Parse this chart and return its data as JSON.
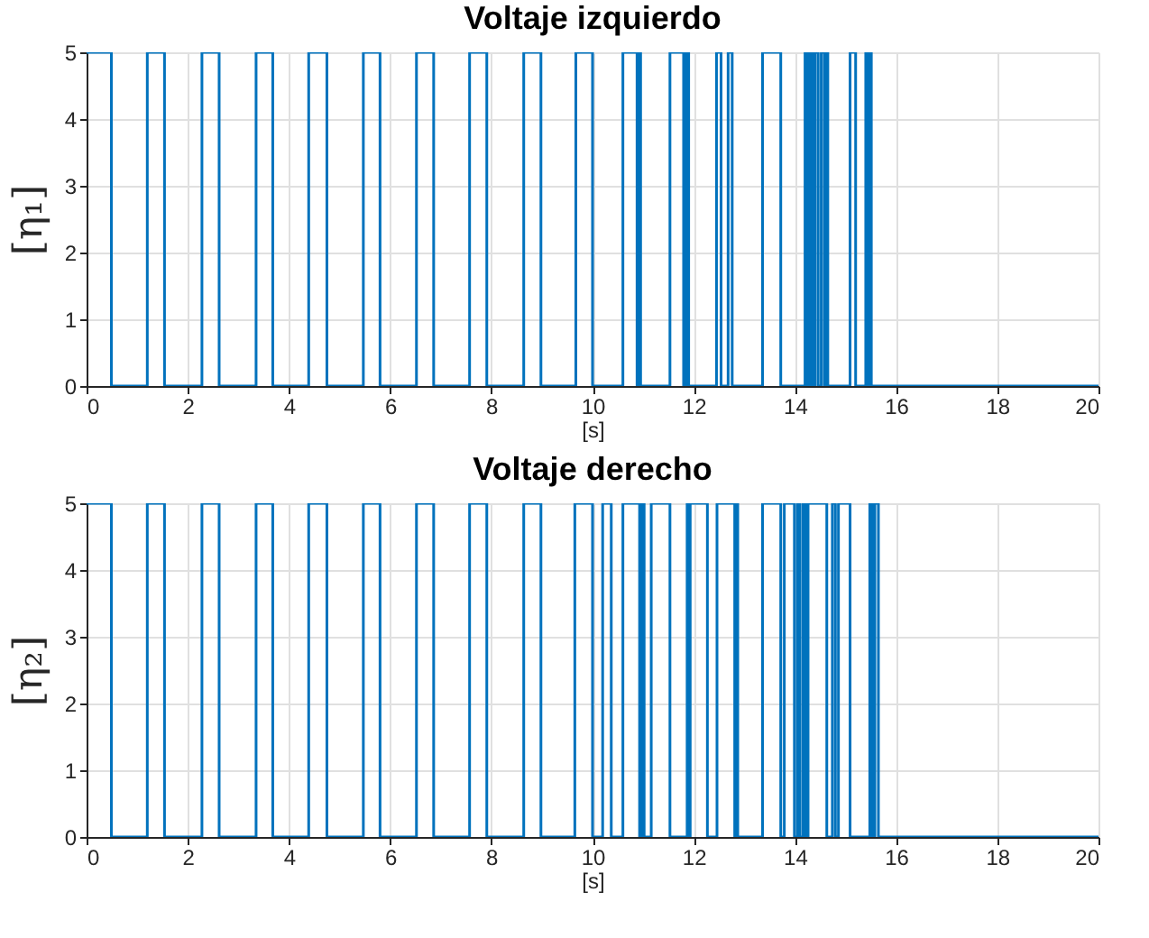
{
  "chart_data": [
    {
      "type": "step",
      "title": "Voltaje izquierdo",
      "xlabel": "[s]",
      "ylabel": "[η₁]",
      "xlim": [
        0,
        20
      ],
      "xticks": [
        0,
        2,
        4,
        6,
        8,
        10,
        12,
        14,
        16,
        18,
        20
      ],
      "ylim": [
        0,
        5
      ],
      "yticks": [
        0,
        1,
        2,
        3,
        4,
        5
      ],
      "grid": true,
      "series": [
        {
          "color": "#0072bd",
          "x": [
            0,
            0.49,
            1.2,
            1.54,
            2.28,
            2.62,
            3.35,
            3.68,
            4.39,
            4.75,
            5.47,
            5.8,
            6.52,
            6.86,
            7.57,
            7.91,
            8.64,
            8.98,
            9.67,
            10.0,
            10.6,
            10.88,
            10.92,
            10.95,
            11.53,
            11.8,
            11.85,
            11.9,
            12.45,
            12.54,
            12.68,
            12.76,
            13.36,
            13.72,
            14.2,
            14.25,
            14.3,
            14.35,
            14.4,
            14.46,
            14.52,
            14.58,
            14.62,
            14.65,
            15.09,
            15.2,
            15.4,
            15.45,
            15.48,
            15.51,
            20
          ],
          "values": [
            5,
            0,
            5,
            0,
            5,
            0,
            5,
            0,
            5,
            0,
            5,
            0,
            5,
            0,
            5,
            0,
            5,
            0,
            5,
            0,
            5,
            0,
            5,
            0,
            5,
            0,
            5,
            0,
            5,
            0,
            5,
            0,
            5,
            0,
            5,
            0,
            5,
            0,
            5,
            0,
            5,
            0,
            5,
            0,
            5,
            0,
            5,
            0,
            5,
            0,
            0
          ]
        }
      ]
    },
    {
      "type": "step",
      "title": "Voltaje derecho",
      "xlabel": "[s]",
      "ylabel": "[η₂]",
      "xlim": [
        0,
        20
      ],
      "xticks": [
        0,
        2,
        4,
        6,
        8,
        10,
        12,
        14,
        16,
        18,
        20
      ],
      "ylim": [
        0,
        5
      ],
      "yticks": [
        0,
        1,
        2,
        3,
        4,
        5
      ],
      "grid": true,
      "series": [
        {
          "color": "#0072bd",
          "x": [
            0,
            0.49,
            1.2,
            1.54,
            2.28,
            2.62,
            3.35,
            3.68,
            4.39,
            4.75,
            5.47,
            5.8,
            6.52,
            6.86,
            7.57,
            7.91,
            8.64,
            8.98,
            9.65,
            10.0,
            10.2,
            10.37,
            10.6,
            10.93,
            10.98,
            11.02,
            11.16,
            11.53,
            11.87,
            11.9,
            11.93,
            12.27,
            12.46,
            12.81,
            12.84,
            12.87,
            13.36,
            13.72,
            13.79,
            13.99,
            14.05,
            14.1,
            14.16,
            14.21,
            14.26,
            14.63,
            14.74,
            14.8,
            14.86,
            15.09,
            15.48,
            15.53,
            15.58,
            15.65,
            20
          ],
          "values": [
            5,
            0,
            5,
            0,
            5,
            0,
            5,
            0,
            5,
            0,
            5,
            0,
            5,
            0,
            5,
            0,
            5,
            0,
            5,
            0,
            5,
            0,
            5,
            0,
            5,
            0,
            5,
            0,
            5,
            0,
            5,
            0,
            5,
            0,
            5,
            0,
            5,
            0,
            5,
            0,
            5,
            0,
            5,
            0,
            5,
            0,
            5,
            0,
            5,
            0,
            5,
            0,
            5,
            0,
            0
          ]
        }
      ]
    }
  ]
}
